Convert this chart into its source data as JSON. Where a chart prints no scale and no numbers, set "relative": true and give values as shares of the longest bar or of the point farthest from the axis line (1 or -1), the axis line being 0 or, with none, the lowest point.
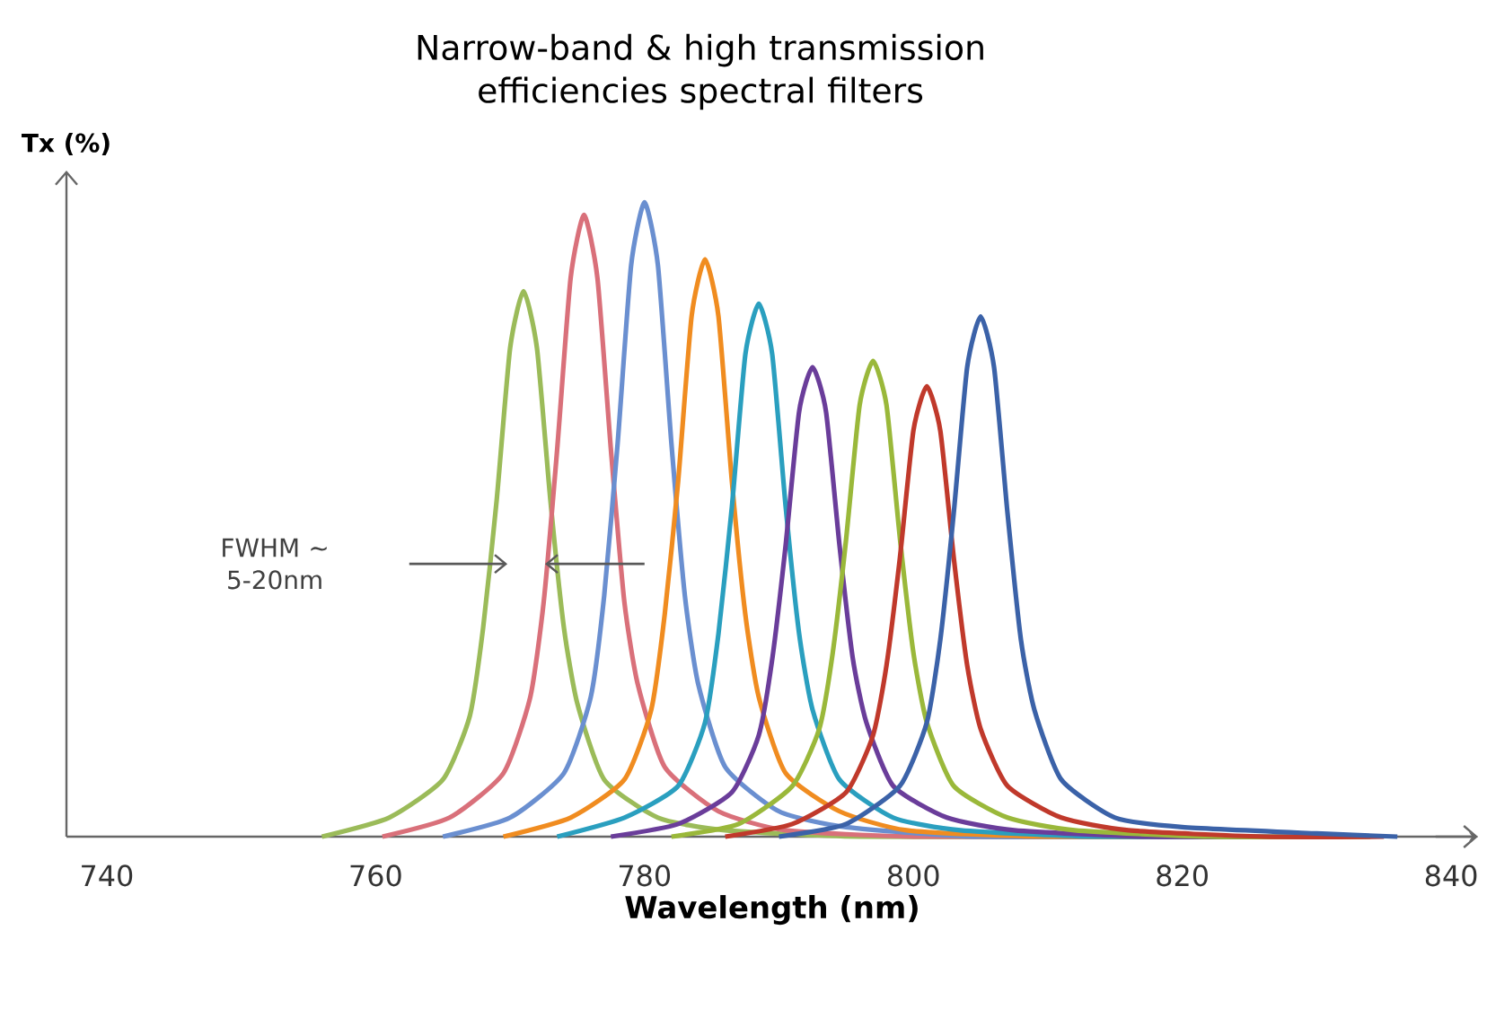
{
  "chart_data": {
    "type": "line",
    "title": "Narrow-band & high transmission efficiencies spectral filters",
    "xlabel": "Wavelength (nm)",
    "ylabel": "Tx (%)",
    "relative": true,
    "marker": "none",
    "tick_labels": "x",
    "xlim": [
      737,
      842
    ],
    "xticks": [
      740,
      760,
      780,
      800,
      820,
      840
    ],
    "annotations": [
      "FWHM ~ 5-20nm"
    ],
    "series": [
      {
        "color": "#9bbb59",
        "x": [
          756,
          761,
          765,
          767,
          768,
          769,
          770,
          771,
          772,
          773,
          774,
          775,
          777,
          781,
          786,
          796,
          815
        ],
        "values": [
          0,
          0.03,
          0.09,
          0.19,
          0.33,
          0.53,
          0.77,
          0.86,
          0.77,
          0.53,
          0.33,
          0.21,
          0.09,
          0.03,
          0.01,
          0,
          0
        ]
      },
      {
        "color": "#d9707a",
        "x": [
          760.5,
          765.5,
          769.5,
          771.5,
          772.5,
          773.5,
          774.5,
          775.5,
          776.5,
          777.5,
          778.5,
          779.5,
          781.5,
          785.5,
          790.5,
          800.5,
          820
        ],
        "values": [
          0,
          0.03,
          0.1,
          0.22,
          0.37,
          0.61,
          0.88,
          0.98,
          0.88,
          0.61,
          0.37,
          0.24,
          0.11,
          0.04,
          0.01,
          0,
          0
        ]
      },
      {
        "color": "#6a8fd0",
        "x": [
          765,
          770,
          774,
          776,
          777,
          778,
          779,
          780,
          781,
          782,
          783,
          784,
          786,
          790,
          795,
          805,
          825
        ],
        "values": [
          0,
          0.03,
          0.1,
          0.22,
          0.38,
          0.62,
          0.9,
          1,
          0.9,
          0.62,
          0.38,
          0.24,
          0.11,
          0.04,
          0.015,
          0,
          0
        ]
      },
      {
        "color": "#f08c20",
        "x": [
          769.5,
          774.5,
          778.5,
          780.5,
          781.5,
          782.5,
          783.5,
          784.5,
          785.5,
          786.5,
          787.5,
          788.5,
          790.5,
          794.5,
          799.5,
          809.5,
          828
        ],
        "values": [
          0,
          0.03,
          0.09,
          0.2,
          0.35,
          0.56,
          0.82,
          0.91,
          0.82,
          0.56,
          0.35,
          0.22,
          0.1,
          0.04,
          0.01,
          0,
          0
        ]
      },
      {
        "color": "#2a9fbf",
        "x": [
          773.5,
          778.5,
          782.5,
          784.5,
          785.5,
          786.5,
          787.5,
          788.5,
          789.5,
          790.5,
          791.5,
          792.5,
          794.5,
          798.5,
          803.5,
          813.5,
          830
        ],
        "values": [
          0,
          0.03,
          0.08,
          0.18,
          0.32,
          0.52,
          0.76,
          0.84,
          0.76,
          0.52,
          0.32,
          0.2,
          0.09,
          0.03,
          0.01,
          0,
          0
        ]
      },
      {
        "color": "#6a3d9a",
        "x": [
          777.5,
          782.5,
          786.5,
          788.5,
          789.5,
          790.5,
          791.5,
          792.5,
          793.5,
          794.5,
          795.5,
          796.5,
          798.5,
          802.5,
          807.5,
          817.5,
          832
        ],
        "values": [
          0,
          0.02,
          0.07,
          0.16,
          0.28,
          0.46,
          0.67,
          0.74,
          0.67,
          0.46,
          0.28,
          0.18,
          0.08,
          0.03,
          0.01,
          0,
          0
        ]
      },
      {
        "color": "#9ab83a",
        "x": [
          782,
          787,
          791,
          793,
          794,
          795,
          796,
          797,
          798,
          799,
          800,
          801,
          803,
          807,
          812,
          822,
          834
        ],
        "values": [
          0,
          0.02,
          0.08,
          0.17,
          0.29,
          0.47,
          0.68,
          0.75,
          0.68,
          0.47,
          0.29,
          0.18,
          0.08,
          0.03,
          0.01,
          0,
          0
        ]
      },
      {
        "color": "#c0392b",
        "x": [
          786,
          791,
          795,
          797,
          798,
          799,
          800,
          801,
          802,
          803,
          804,
          805,
          807,
          811,
          816,
          826,
          835
        ],
        "values": [
          0,
          0.02,
          0.07,
          0.16,
          0.27,
          0.44,
          0.64,
          0.71,
          0.64,
          0.44,
          0.27,
          0.17,
          0.08,
          0.03,
          0.01,
          0,
          0
        ]
      },
      {
        "color": "#3b62a8",
        "x": [
          790,
          795,
          799,
          801,
          802,
          803,
          804,
          805,
          806,
          807,
          808,
          809,
          811,
          815,
          820,
          830,
          836
        ],
        "values": [
          0,
          0.02,
          0.08,
          0.18,
          0.31,
          0.51,
          0.74,
          0.82,
          0.74,
          0.51,
          0.31,
          0.2,
          0.09,
          0.03,
          0.015,
          0.005,
          0
        ]
      }
    ]
  }
}
